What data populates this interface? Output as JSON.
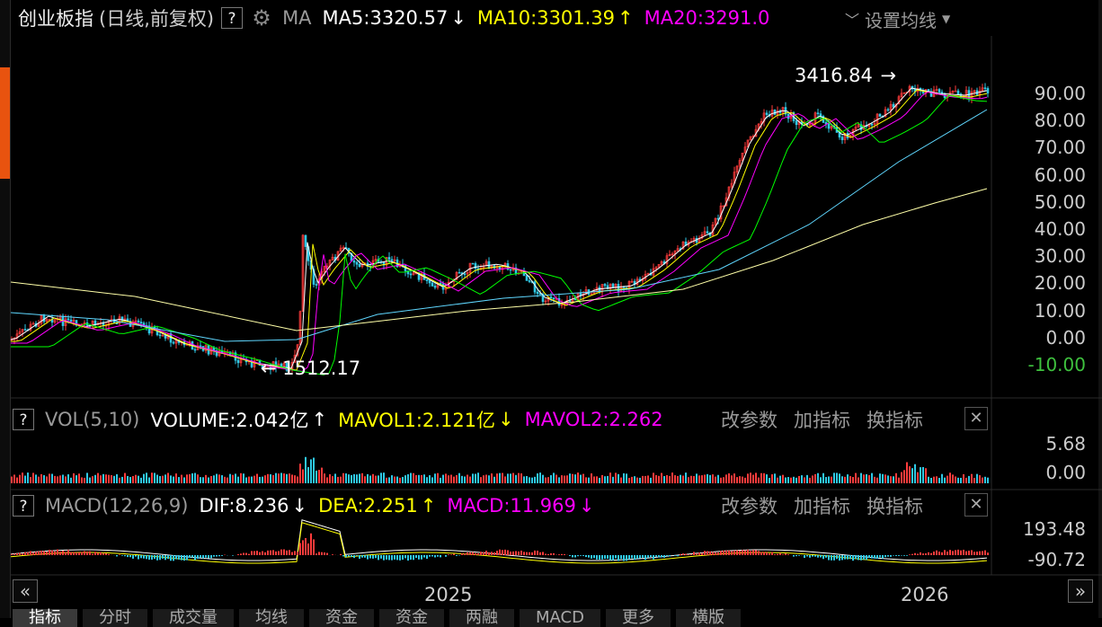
{
  "header": {
    "title": "创业板指",
    "subtitle": "(日线,前复权)",
    "help": "?",
    "ma_label": "MA",
    "ma5": "MA5:3320.57",
    "ma5_arrow": "↓",
    "ma10": "MA10:3301.39",
    "ma10_arrow": "↑",
    "ma20": "MA20:3291.0",
    "settings_label": "设置均线",
    "settings_icon": "caret-down-icon"
  },
  "price_axis": {
    "labels": [
      "90.00",
      "80.00",
      "70.00",
      "60.00",
      "50.00",
      "40.00",
      "30.00",
      "20.00",
      "10.00",
      "0.00",
      "-10.00"
    ]
  },
  "annotations": {
    "high": "3416.84",
    "low": "1512.17"
  },
  "vol_panel": {
    "help": "?",
    "title": "VOL(5,10)",
    "volume": "VOLUME:2.042亿",
    "volume_arrow": "↑",
    "mavol1": "MAVOL1:2.121亿",
    "mavol1_arrow": "↓",
    "mavol2": "MAVOL2:2.262",
    "axis": [
      "5.68",
      "0.00"
    ]
  },
  "macd_panel": {
    "help": "?",
    "title": "MACD(12,26,9)",
    "dif": "DIF:8.236",
    "dif_arrow": "↓",
    "dea": "DEA:2.251",
    "dea_arrow": "↑",
    "macd": "MACD:11.969",
    "macd_arrow": "↓",
    "axis": [
      "193.48",
      "-90.72"
    ]
  },
  "panel_actions": {
    "params": "改参数",
    "add": "加指标",
    "switch": "换指标",
    "close": "✕"
  },
  "x_axis": {
    "labels": [
      "2025",
      "2026"
    ]
  },
  "nav": {
    "prev": "«",
    "next": "»"
  },
  "bottom_tabs": [
    "指标",
    "分时",
    "成交量",
    "均线",
    "资金",
    "资金",
    "两融",
    "MACD",
    "更多",
    "横版"
  ],
  "colors": {
    "background": "#000000",
    "grid": "#2a2a2a",
    "up": "#ff3b3b",
    "down": "#2fc9e6",
    "ma5": "#ffffff",
    "ma10": "#ffff00",
    "ma20": "#ff00ff",
    "ma60": "#00ff00",
    "ma120": "#5fd7ff",
    "ma250": "#ffffa8",
    "negative": "#3ec13e",
    "accent": "#e8530f"
  }
}
